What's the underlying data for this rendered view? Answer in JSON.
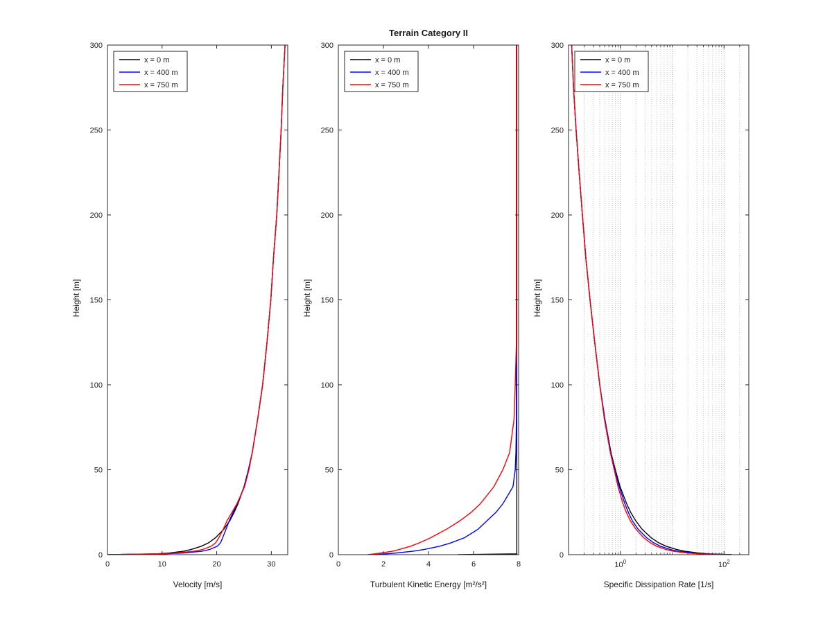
{
  "figure": {
    "background": "#ffffff"
  },
  "legend": {
    "entries": [
      {
        "label": "x = 0 m",
        "color": "#000000"
      },
      {
        "label": "x = 400 m",
        "color": "#0000ff"
      },
      {
        "label": "x = 750 m",
        "color": "#ff0000"
      }
    ]
  },
  "chart_data": [
    {
      "type": "line",
      "title": "",
      "xlabel": "Velocity [m/s]",
      "ylabel": "Height [m]",
      "xscale": "linear",
      "xlim": [
        0,
        33
      ],
      "ylim": [
        0,
        300
      ],
      "xticks": [
        0,
        10,
        20,
        30
      ],
      "yticks": [
        0,
        50,
        100,
        150,
        200,
        250,
        300
      ],
      "grid": false,
      "legend_position": "top-left",
      "heights": [
        0,
        0.5,
        1,
        2,
        3,
        5,
        7,
        10,
        15,
        20,
        25,
        30,
        40,
        50,
        60,
        80,
        100,
        125,
        150,
        175,
        200,
        225,
        250,
        275,
        300
      ],
      "series": [
        {
          "name": "x = 0 m",
          "color": "#000000",
          "values": [
            0,
            8.9,
            11.4,
            13.9,
            15.3,
            17.2,
            18.5,
            19.8,
            21.3,
            22.4,
            23.2,
            23.9,
            25.0,
            25.8,
            26.5,
            27.5,
            28.4,
            29.2,
            29.9,
            30.4,
            31.0,
            31.4,
            31.8,
            32.1,
            32.5
          ]
        },
        {
          "name": "x = 400 m",
          "color": "#0000ff",
          "values": [
            0,
            10.5,
            14.0,
            17.3,
            18.7,
            20.1,
            20.7,
            21.1,
            21.7,
            22.3,
            23.0,
            23.8,
            25.0,
            25.8,
            26.5,
            27.5,
            28.4,
            29.2,
            29.9,
            30.4,
            31.0,
            31.4,
            31.8,
            32.1,
            32.5
          ]
        },
        {
          "name": "x = 750 m",
          "color": "#ff0000",
          "values": [
            0,
            9.0,
            12.5,
            15.8,
            17.4,
            19.0,
            19.8,
            20.4,
            21.2,
            21.9,
            22.8,
            23.7,
            25.1,
            25.9,
            26.5,
            27.5,
            28.4,
            29.2,
            29.9,
            30.4,
            31.0,
            31.4,
            31.8,
            32.1,
            32.5
          ]
        }
      ]
    },
    {
      "type": "line",
      "title": "Terrain Category II",
      "xlabel": "Turbulent Kinetic Energy [m²/s²]",
      "ylabel": "Height [m]",
      "xscale": "linear",
      "xlim": [
        0,
        8
      ],
      "ylim": [
        0,
        300
      ],
      "xticks": [
        0,
        2,
        4,
        6,
        8
      ],
      "yticks": [
        0,
        50,
        100,
        150,
        200,
        250,
        300
      ],
      "grid": false,
      "legend_position": "top-left",
      "heights": [
        0,
        0.5,
        1,
        2,
        3,
        5,
        7,
        10,
        15,
        20,
        25,
        30,
        40,
        50,
        60,
        80,
        100,
        125,
        150,
        175,
        200,
        225,
        250,
        275,
        300
      ],
      "series": [
        {
          "name": "x = 0 m",
          "color": "#000000",
          "values": [
            5.3,
            7.92,
            7.92,
            7.92,
            7.92,
            7.92,
            7.92,
            7.92,
            7.92,
            7.92,
            7.92,
            7.92,
            7.92,
            7.92,
            7.92,
            7.92,
            7.92,
            7.92,
            7.92,
            7.92,
            7.92,
            7.92,
            7.92,
            7.92,
            7.92
          ]
        },
        {
          "name": "x = 400 m",
          "color": "#0000ff",
          "values": [
            1.5,
            2.1,
            2.6,
            3.3,
            3.8,
            4.5,
            5.0,
            5.6,
            6.2,
            6.6,
            7.0,
            7.3,
            7.75,
            7.85,
            7.88,
            7.9,
            7.9,
            7.9,
            7.9,
            7.9,
            7.9,
            7.9,
            7.9,
            7.9,
            7.9
          ]
        },
        {
          "name": "x = 750 m",
          "color": "#ff0000",
          "values": [
            1.3,
            1.6,
            1.9,
            2.4,
            2.7,
            3.2,
            3.6,
            4.1,
            4.8,
            5.4,
            5.9,
            6.3,
            6.9,
            7.3,
            7.6,
            7.8,
            7.85,
            7.9,
            7.9,
            7.9,
            7.9,
            7.9,
            7.9,
            7.9,
            7.9
          ]
        }
      ]
    },
    {
      "type": "line",
      "title": "",
      "xlabel": "Specific Dissipation Rate [1/s]",
      "ylabel": "Height [m]",
      "xscale": "log",
      "xlim": [
        0.1,
        300
      ],
      "ylim": [
        0,
        300
      ],
      "xticks": [
        1,
        100
      ],
      "yticks": [
        0,
        50,
        100,
        150,
        200,
        250,
        300
      ],
      "grid": true,
      "minor_grid": true,
      "legend_position": "top-left",
      "heights": [
        0,
        0.5,
        1,
        2,
        3,
        5,
        7,
        10,
        15,
        20,
        25,
        30,
        40,
        50,
        60,
        80,
        100,
        125,
        150,
        175,
        200,
        225,
        250,
        275,
        300
      ],
      "series": [
        {
          "name": "x = 0 m",
          "color": "#000000",
          "values": [
            143,
            51,
            31,
            17.5,
            12.2,
            7.6,
            5.5,
            3.9,
            2.62,
            1.97,
            1.58,
            1.32,
            0.99,
            0.8,
            0.66,
            0.5,
            0.4,
            0.32,
            0.26,
            0.215,
            0.185,
            0.16,
            0.14,
            0.125,
            0.115
          ]
        },
        {
          "name": "x = 400 m",
          "color": "#0000ff",
          "values": [
            130,
            40,
            24,
            13,
            9.2,
            5.9,
            4.4,
            3.2,
            2.2,
            1.7,
            1.42,
            1.22,
            0.95,
            0.78,
            0.65,
            0.5,
            0.4,
            0.32,
            0.26,
            0.215,
            0.185,
            0.16,
            0.14,
            0.125,
            0.115
          ]
        },
        {
          "name": "x = 750 m",
          "color": "#ff0000",
          "values": [
            125,
            33,
            19,
            10.5,
            7.6,
            5.0,
            3.8,
            2.8,
            2.0,
            1.55,
            1.3,
            1.12,
            0.9,
            0.76,
            0.64,
            0.49,
            0.4,
            0.32,
            0.26,
            0.215,
            0.185,
            0.16,
            0.14,
            0.125,
            0.115
          ]
        }
      ]
    }
  ]
}
